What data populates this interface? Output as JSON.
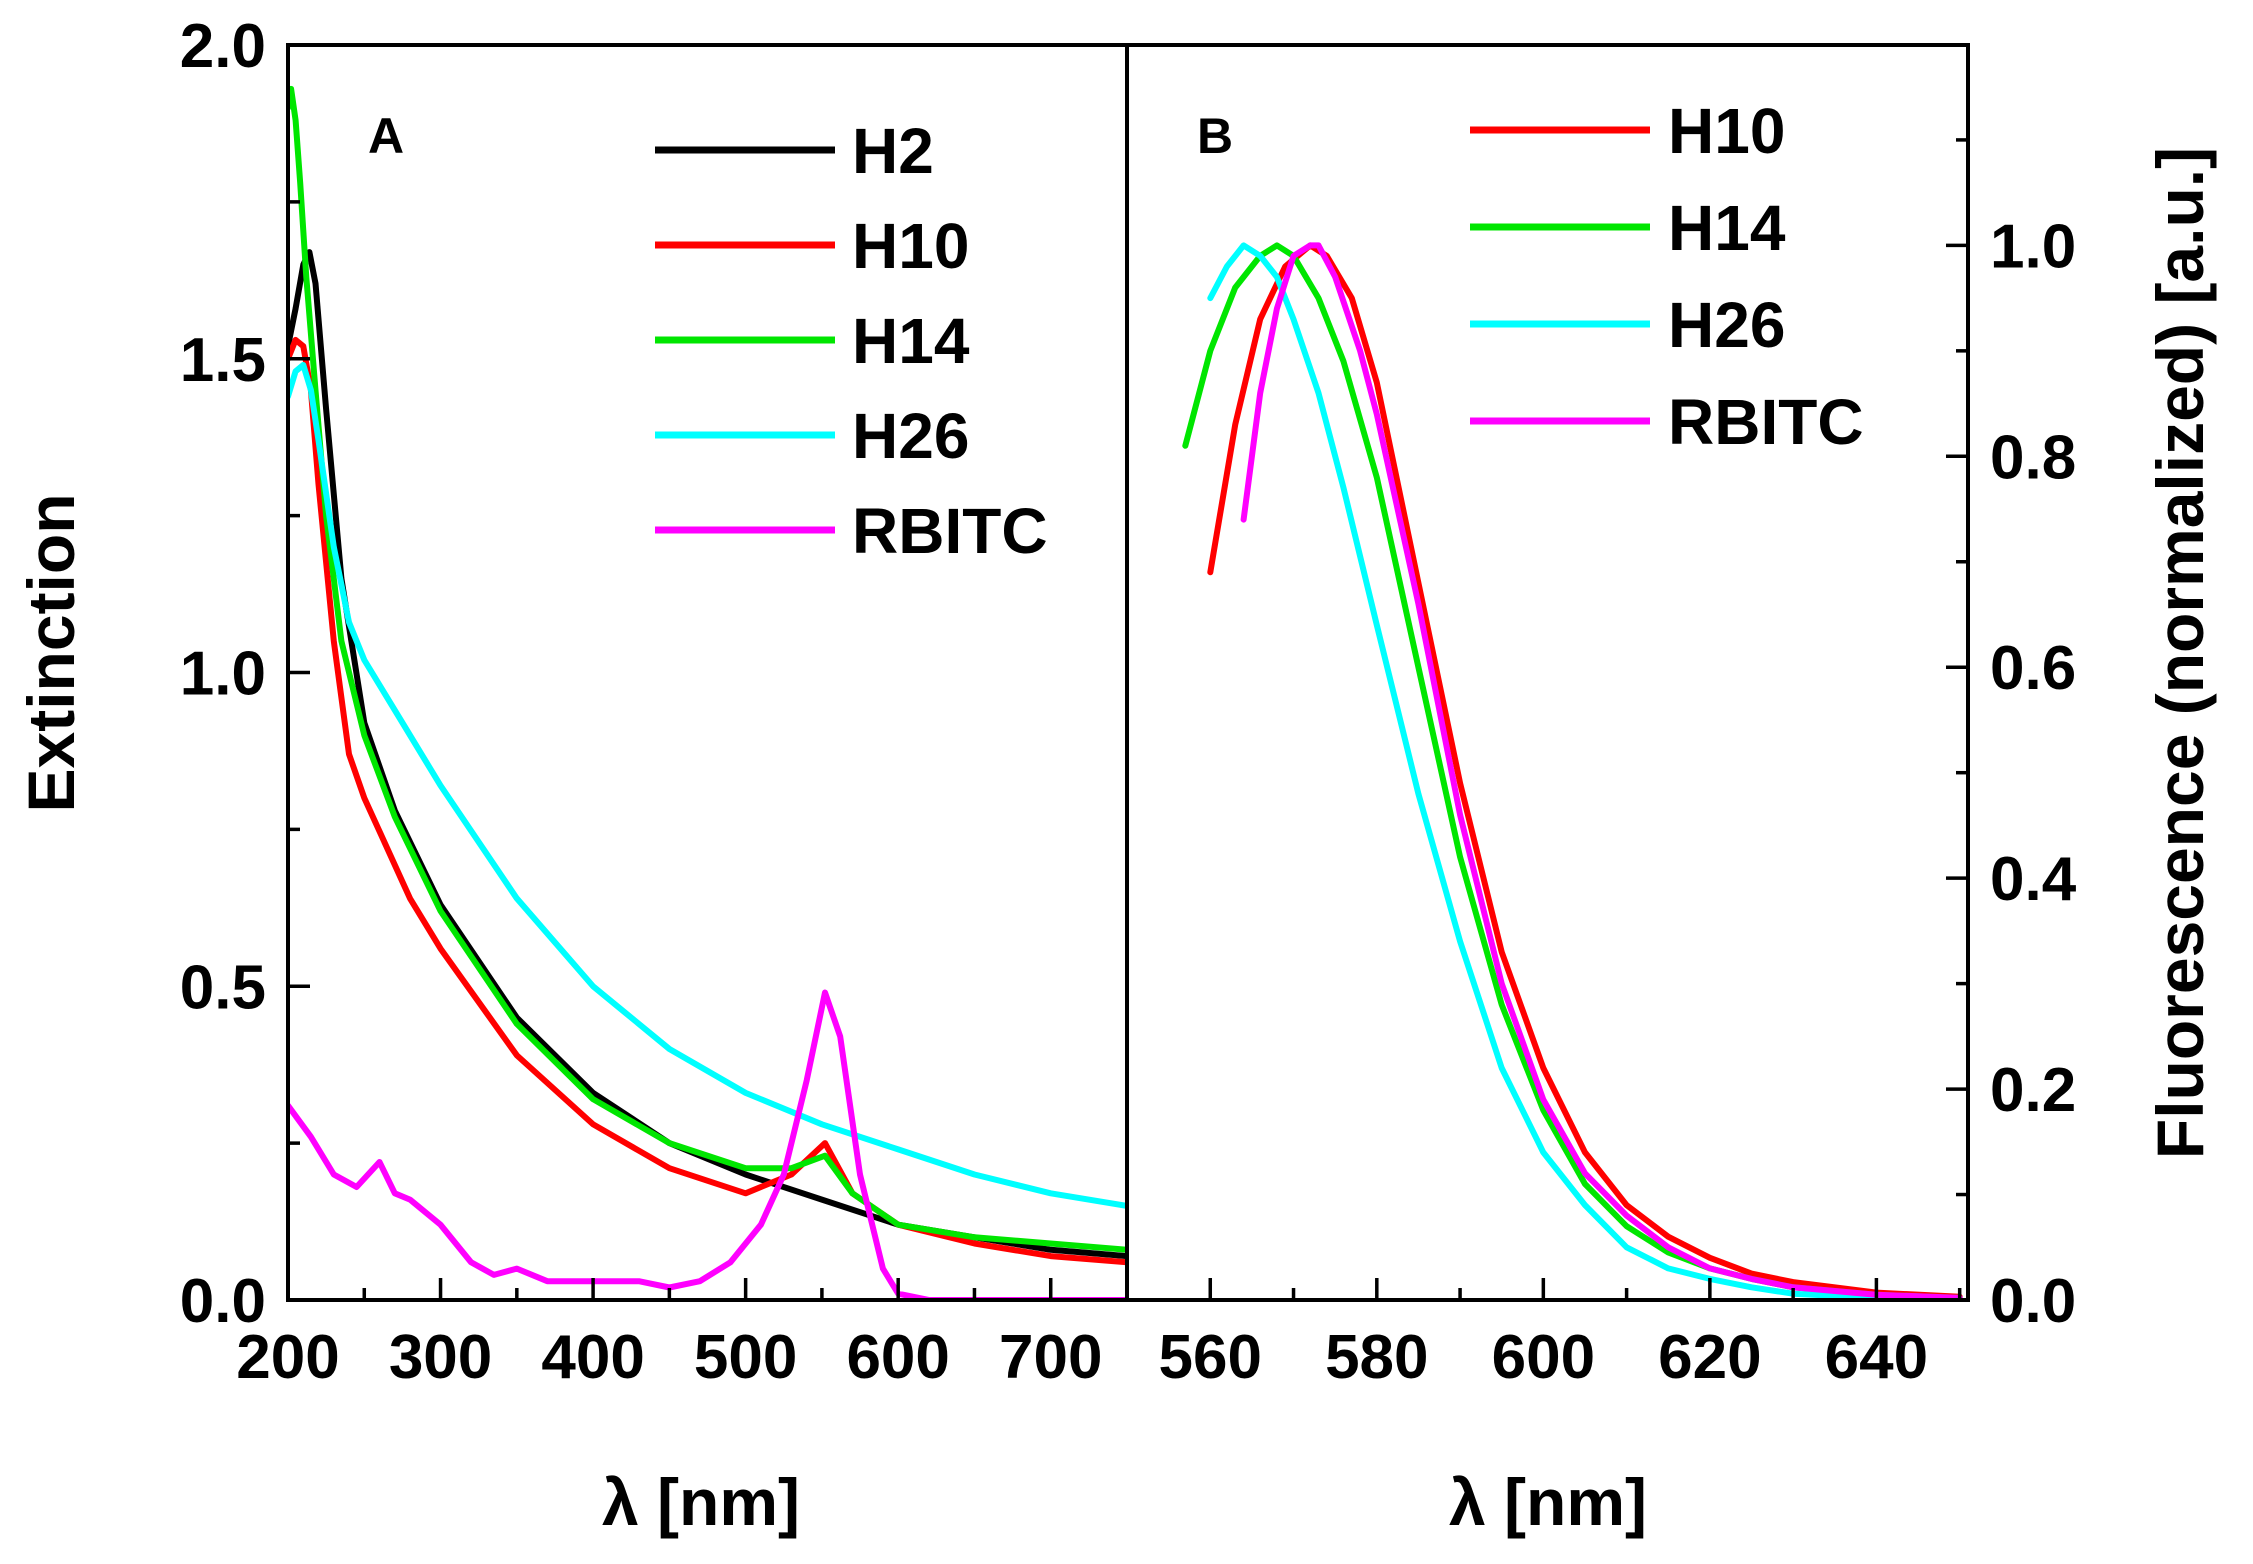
{
  "colors": {
    "H2": "#000000",
    "H10": "#ff0000",
    "H14": "#00e600",
    "H26": "#00ffff",
    "RBITC": "#ff00ff"
  },
  "chart_data": [
    {
      "type": "line",
      "panel_label": "A",
      "xlabel": "λ [nm]",
      "ylabel": "Extinction",
      "xlim": [
        200,
        750
      ],
      "ylim": [
        0,
        2.0
      ],
      "xticks": [
        "200",
        "300",
        "400",
        "500",
        "600",
        "700"
      ],
      "yticks": [
        "0.0",
        "0.5",
        "1.0",
        "1.5",
        "2.0"
      ],
      "legend": [
        "H2",
        "H10",
        "H14",
        "H26",
        "RBITC"
      ],
      "series": [
        {
          "name": "H2",
          "x": [
            200,
            205,
            210,
            214,
            218,
            225,
            235,
            250,
            270,
            300,
            350,
            400,
            450,
            500,
            550,
            600,
            650,
            700,
            750
          ],
          "y": [
            1.52,
            1.58,
            1.65,
            1.67,
            1.62,
            1.42,
            1.15,
            0.92,
            0.78,
            0.63,
            0.45,
            0.33,
            0.25,
            0.2,
            0.16,
            0.12,
            0.1,
            0.08,
            0.07
          ]
        },
        {
          "name": "H10",
          "x": [
            200,
            205,
            210,
            215,
            220,
            230,
            240,
            250,
            265,
            280,
            300,
            350,
            400,
            450,
            500,
            530,
            552,
            570,
            600,
            650,
            700,
            750
          ],
          "y": [
            1.5,
            1.53,
            1.52,
            1.45,
            1.3,
            1.05,
            0.87,
            0.8,
            0.72,
            0.64,
            0.56,
            0.39,
            0.28,
            0.21,
            0.17,
            0.2,
            0.25,
            0.17,
            0.12,
            0.09,
            0.07,
            0.06
          ]
        },
        {
          "name": "H14",
          "x": [
            200,
            202,
            205,
            208,
            212,
            218,
            225,
            235,
            250,
            270,
            300,
            350,
            400,
            450,
            500,
            530,
            552,
            570,
            600,
            650,
            700,
            750
          ],
          "y": [
            1.9,
            1.93,
            1.88,
            1.78,
            1.63,
            1.45,
            1.25,
            1.05,
            0.9,
            0.77,
            0.62,
            0.44,
            0.32,
            0.25,
            0.21,
            0.21,
            0.23,
            0.17,
            0.12,
            0.1,
            0.09,
            0.08
          ]
        },
        {
          "name": "H26",
          "x": [
            200,
            205,
            210,
            215,
            220,
            230,
            240,
            250,
            275,
            300,
            350,
            400,
            450,
            500,
            550,
            600,
            650,
            700,
            750
          ],
          "y": [
            1.44,
            1.48,
            1.49,
            1.45,
            1.37,
            1.2,
            1.08,
            1.02,
            0.92,
            0.82,
            0.64,
            0.5,
            0.4,
            0.33,
            0.28,
            0.24,
            0.2,
            0.17,
            0.15
          ]
        },
        {
          "name": "RBITC",
          "x": [
            200,
            215,
            230,
            245,
            260,
            270,
            280,
            300,
            320,
            335,
            350,
            370,
            400,
            430,
            450,
            470,
            490,
            510,
            525,
            540,
            552,
            562,
            575,
            590,
            600,
            620,
            700,
            750
          ],
          "y": [
            0.31,
            0.26,
            0.2,
            0.18,
            0.22,
            0.17,
            0.16,
            0.12,
            0.06,
            0.04,
            0.05,
            0.03,
            0.03,
            0.03,
            0.02,
            0.03,
            0.06,
            0.12,
            0.2,
            0.35,
            0.49,
            0.42,
            0.2,
            0.05,
            0.01,
            0.0,
            0.0,
            0.0
          ]
        }
      ]
    },
    {
      "type": "line",
      "panel_label": "B",
      "xlabel": "λ [nm]",
      "ylabel": "Fluorescence (normalized) [a.u.]",
      "xlim": [
        550,
        651
      ],
      "ylim": [
        0,
        1.19
      ],
      "xticks": [
        "560",
        "580",
        "600",
        "620",
        "640"
      ],
      "yticks": [
        "0.0",
        "0.2",
        "0.4",
        "0.6",
        "0.8",
        "1.0"
      ],
      "legend": [
        "H10",
        "H14",
        "H26",
        "RBITC"
      ],
      "series": [
        {
          "name": "H10",
          "x": [
            560,
            563,
            566,
            569,
            572,
            574,
            577,
            580,
            585,
            590,
            595,
            600,
            605,
            610,
            615,
            620,
            625,
            630,
            640,
            650
          ],
          "y": [
            0.69,
            0.83,
            0.93,
            0.98,
            1.0,
            0.99,
            0.95,
            0.87,
            0.68,
            0.49,
            0.33,
            0.22,
            0.14,
            0.09,
            0.06,
            0.04,
            0.025,
            0.017,
            0.007,
            0.003
          ]
        },
        {
          "name": "H14",
          "x": [
            557,
            560,
            563,
            566,
            568,
            570,
            573,
            576,
            580,
            585,
            590,
            595,
            600,
            605,
            610,
            615,
            620,
            625,
            630,
            640,
            650
          ],
          "y": [
            0.81,
            0.9,
            0.96,
            0.99,
            1.0,
            0.99,
            0.95,
            0.89,
            0.78,
            0.6,
            0.42,
            0.28,
            0.18,
            0.11,
            0.07,
            0.045,
            0.03,
            0.02,
            0.012,
            0.005,
            0.002
          ]
        },
        {
          "name": "H26",
          "x": [
            560,
            562,
            564,
            566,
            568,
            570,
            573,
            576,
            580,
            585,
            590,
            595,
            600,
            605,
            610,
            615,
            620,
            625,
            630,
            640,
            650
          ],
          "y": [
            0.95,
            0.98,
            1.0,
            0.99,
            0.97,
            0.93,
            0.86,
            0.77,
            0.64,
            0.48,
            0.34,
            0.22,
            0.14,
            0.09,
            0.05,
            0.03,
            0.02,
            0.012,
            0.006,
            0.002,
            0.0
          ]
        },
        {
          "name": "RBITC",
          "x": [
            564,
            566,
            568,
            570,
            572,
            573,
            575,
            578,
            580,
            585,
            590,
            595,
            600,
            605,
            610,
            615,
            620,
            625,
            630,
            640,
            650
          ],
          "y": [
            0.74,
            0.86,
            0.94,
            0.99,
            1.0,
            1.0,
            0.97,
            0.9,
            0.84,
            0.66,
            0.46,
            0.3,
            0.19,
            0.12,
            0.08,
            0.05,
            0.03,
            0.02,
            0.012,
            0.005,
            0.002
          ]
        }
      ]
    }
  ]
}
